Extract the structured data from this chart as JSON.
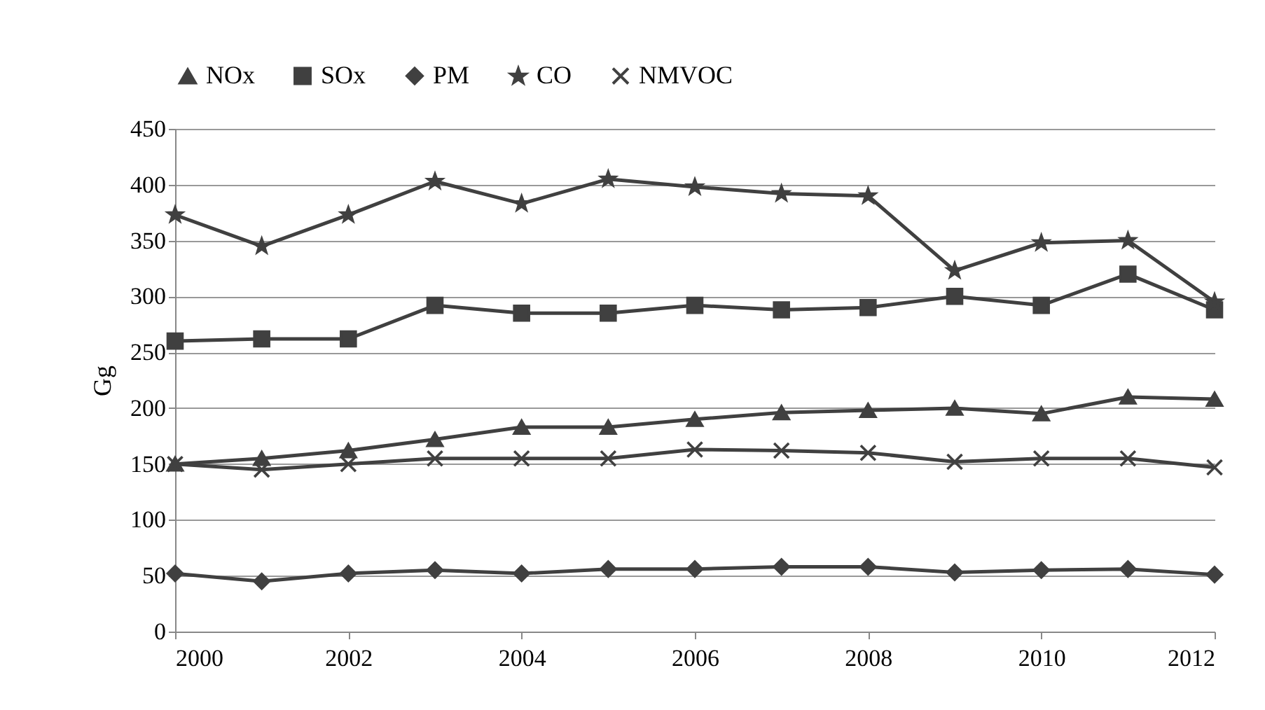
{
  "chart_data": {
    "type": "line",
    "ylabel": "Gg",
    "x": [
      2000,
      2001,
      2002,
      2003,
      2004,
      2005,
      2006,
      2007,
      2008,
      2009,
      2010,
      2011,
      2012
    ],
    "series": [
      {
        "name": "NOx",
        "color": "#404040",
        "marker": "triangle",
        "values": [
          150,
          155,
          162,
          172,
          183,
          183,
          190,
          196,
          198,
          200,
          195,
          210,
          208
        ]
      },
      {
        "name": "SOx",
        "color": "#404040",
        "marker": "square",
        "values": [
          260,
          262,
          262,
          292,
          285,
          285,
          292,
          288,
          290,
          300,
          292,
          320,
          288
        ]
      },
      {
        "name": "PM",
        "color": "#404040",
        "marker": "diamond",
        "values": [
          52,
          45,
          52,
          55,
          52,
          56,
          56,
          58,
          58,
          53,
          55,
          56,
          51
        ]
      },
      {
        "name": "CO",
        "color": "#404040",
        "marker": "star",
        "values": [
          373,
          345,
          373,
          403,
          383,
          405,
          398,
          392,
          390,
          323,
          348,
          350,
          295
        ]
      },
      {
        "name": "NMVOC",
        "color": "#404040",
        "marker": "cross",
        "values": [
          150,
          145,
          150,
          155,
          155,
          155,
          163,
          162,
          160,
          152,
          155,
          155,
          147
        ]
      }
    ],
    "xlim": [
      2000,
      2012
    ],
    "xticks": [
      2000,
      2002,
      2004,
      2006,
      2008,
      2010,
      2012
    ],
    "ylim": [
      0,
      450
    ],
    "yticks": [
      0,
      50,
      100,
      150,
      200,
      250,
      300,
      350,
      400,
      450
    ],
    "grid": "y",
    "legend": "top"
  }
}
